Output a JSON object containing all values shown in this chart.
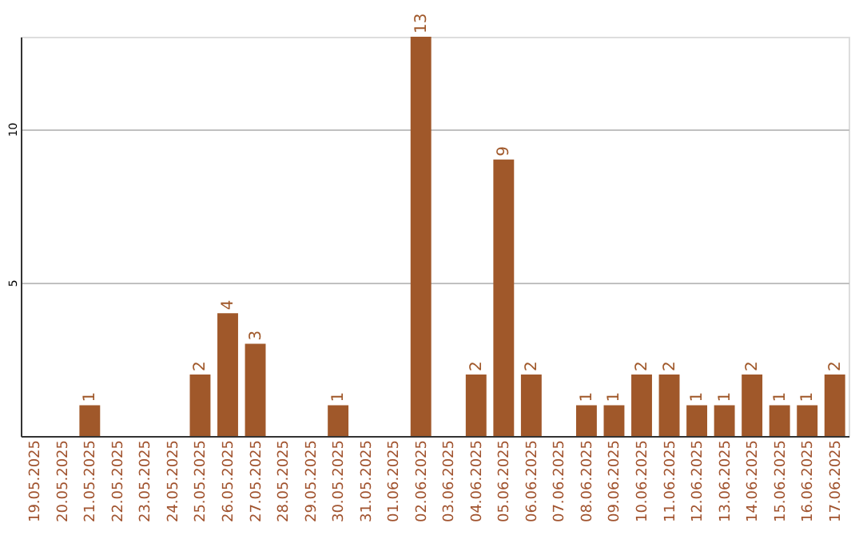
{
  "chart_data": {
    "type": "bar",
    "categories": [
      "19.05.2025",
      "20.05.2025",
      "21.05.2025",
      "22.05.2025",
      "23.05.2025",
      "24.05.2025",
      "25.05.2025",
      "26.05.2025",
      "27.05.2025",
      "28.05.2025",
      "29.05.2025",
      "30.05.2025",
      "31.05.2025",
      "01.06.2025",
      "02.06.2025",
      "03.06.2025",
      "04.06.2025",
      "05.06.2025",
      "06.06.2025",
      "07.06.2025",
      "08.06.2025",
      "09.06.2025",
      "10.06.2025",
      "11.06.2025",
      "12.06.2025",
      "13.06.2025",
      "14.06.2025",
      "15.06.2025",
      "16.06.2025",
      "17.06.2025"
    ],
    "values": [
      null,
      null,
      1,
      null,
      null,
      null,
      2,
      4,
      3,
      null,
      null,
      1,
      null,
      null,
      13,
      null,
      2,
      9,
      2,
      null,
      1,
      1,
      2,
      2,
      1,
      1,
      2,
      1,
      1,
      2
    ],
    "color": "#a0582a",
    "ylim": [
      0,
      13
    ],
    "yticks": [
      5,
      10
    ],
    "grid": "y",
    "data_labels": true
  }
}
